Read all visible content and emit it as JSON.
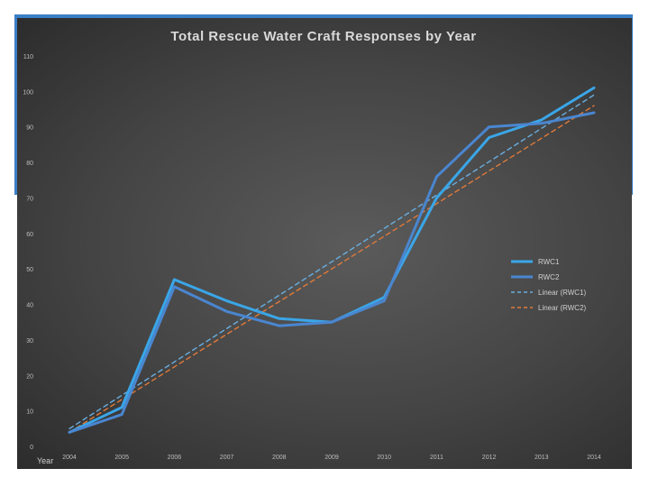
{
  "chart_data": {
    "type": "line",
    "title": "Total Rescue Water Craft Responses by Year",
    "xlabel": "Year",
    "ylabel": "",
    "x": [
      "2004",
      "2005",
      "2006",
      "2007",
      "2008",
      "2009",
      "2010",
      "2011",
      "2012",
      "2013",
      "2014"
    ],
    "ylim": [
      0,
      110
    ],
    "yticks": [
      0,
      10,
      20,
      30,
      40,
      50,
      60,
      70,
      80,
      90,
      100,
      110
    ],
    "grid": false,
    "legend_position": "right",
    "series": [
      {
        "name": "RWC1",
        "style": "solid",
        "color": "#3aa6e8",
        "values": [
          4,
          11,
          47,
          41,
          36,
          35,
          42,
          70,
          87,
          92,
          101
        ]
      },
      {
        "name": "RWC2",
        "style": "solid",
        "color": "#4a86d0",
        "values": [
          4,
          9,
          45,
          38,
          34,
          35,
          41,
          76,
          90,
          91,
          94
        ]
      },
      {
        "name": "Linear (RWC1)",
        "style": "dashed",
        "color": "#6aaee0",
        "values": [
          5.0,
          14.4,
          23.8,
          33.2,
          42.6,
          52.0,
          61.4,
          70.8,
          80.2,
          89.6,
          99.0
        ]
      },
      {
        "name": "Linear (RWC2)",
        "style": "dashed",
        "color": "#e07a3a",
        "values": [
          4.0,
          13.2,
          22.4,
          31.6,
          40.8,
          50.0,
          59.2,
          68.4,
          77.6,
          86.8,
          96.0
        ]
      }
    ]
  }
}
